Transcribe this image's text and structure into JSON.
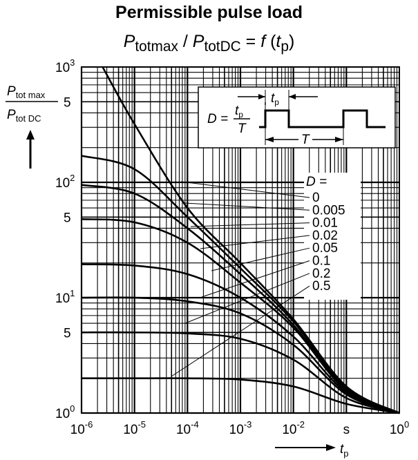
{
  "title": "Permissible pulse load",
  "subtitle": {
    "parts": [
      "P",
      "totmax",
      " / ",
      "P",
      "totDC",
      " = ",
      "f",
      " (",
      "t",
      "p",
      ")"
    ]
  },
  "y_axis_label": {
    "num_main": "P",
    "num_sub": "tot max",
    "den_main": "P",
    "den_sub": "tot DC"
  },
  "x_axis_label": {
    "main": "t",
    "sub": "p",
    "unit": "s"
  },
  "y_minor_labels": [
    "5",
    "5",
    "5"
  ],
  "inset": {
    "formula_lhs": "D =",
    "formula_num_main": "t",
    "formula_num_sub": "p",
    "formula_den": "T",
    "pulse_label_main": "t",
    "pulse_label_sub": "p",
    "period_label": "T"
  },
  "legend": {
    "header": "D =",
    "entries": [
      "0",
      "0.005",
      "0.01",
      "0.02",
      "0.05",
      "0.1",
      "0.2",
      "0.5"
    ]
  },
  "chart_data": {
    "type": "line",
    "title": "Permissible pulse load",
    "xscale": "log",
    "yscale": "log",
    "xlim": [
      1e-06,
      1
    ],
    "ylim": [
      1,
      1000
    ],
    "x_ticks": [
      {
        "base": "10",
        "exp": "-6"
      },
      {
        "base": "10",
        "exp": "-5"
      },
      {
        "base": "10",
        "exp": "-4"
      },
      {
        "base": "10",
        "exp": "-3"
      },
      {
        "base": "10",
        "exp": "-2"
      },
      {
        "base": "s",
        "exp": ""
      },
      {
        "base": "10",
        "exp": "0"
      }
    ],
    "y_ticks": [
      {
        "base": "10",
        "exp": "0"
      },
      {
        "base": "10",
        "exp": "1"
      },
      {
        "base": "10",
        "exp": "2"
      },
      {
        "base": "10",
        "exp": "3"
      }
    ],
    "grid": true,
    "series": [
      {
        "name": "0",
        "x": [
          2.5e-06,
          1e-05,
          0.0001,
          0.001,
          0.01,
          0.1,
          1
        ],
        "y": [
          1000,
          320,
          60,
          20,
          6.5,
          1.7,
          1.0
        ]
      },
      {
        "name": "0.005",
        "x": [
          1e-06,
          1e-05,
          0.0001,
          0.001,
          0.01,
          0.1,
          1
        ],
        "y": [
          170,
          130,
          50,
          18,
          6.2,
          1.65,
          1.0
        ]
      },
      {
        "name": "0.01",
        "x": [
          1e-06,
          1e-05,
          0.0001,
          0.001,
          0.01,
          0.1,
          1
        ],
        "y": [
          95,
          80,
          40,
          16,
          5.8,
          1.6,
          1.0
        ]
      },
      {
        "name": "0.02",
        "x": [
          1e-06,
          1e-05,
          0.0001,
          0.001,
          0.01,
          0.1,
          1
        ],
        "y": [
          48,
          45,
          30,
          13.5,
          5.5,
          1.55,
          1.0
        ]
      },
      {
        "name": "0.05",
        "x": [
          1e-06,
          1e-05,
          0.0001,
          0.001,
          0.01,
          0.1,
          1
        ],
        "y": [
          19.5,
          19,
          16,
          10,
          4.6,
          1.5,
          1.0
        ]
      },
      {
        "name": "0.1",
        "x": [
          1e-06,
          1e-05,
          0.0001,
          0.001,
          0.01,
          0.1,
          1
        ],
        "y": [
          10,
          10,
          9.3,
          7.3,
          3.9,
          1.45,
          1.0
        ]
      },
      {
        "name": "0.2",
        "x": [
          1e-06,
          1e-05,
          0.0001,
          0.001,
          0.01,
          0.1,
          1
        ],
        "y": [
          5,
          5,
          4.9,
          4.4,
          2.9,
          1.35,
          1.0
        ]
      },
      {
        "name": "0.5",
        "x": [
          1e-06,
          1e-05,
          0.0001,
          0.001,
          0.01,
          0.1,
          1
        ],
        "y": [
          2,
          2,
          2,
          1.95,
          1.7,
          1.2,
          1.0
        ]
      }
    ],
    "legend_position": "right-middle (inside plot)"
  }
}
